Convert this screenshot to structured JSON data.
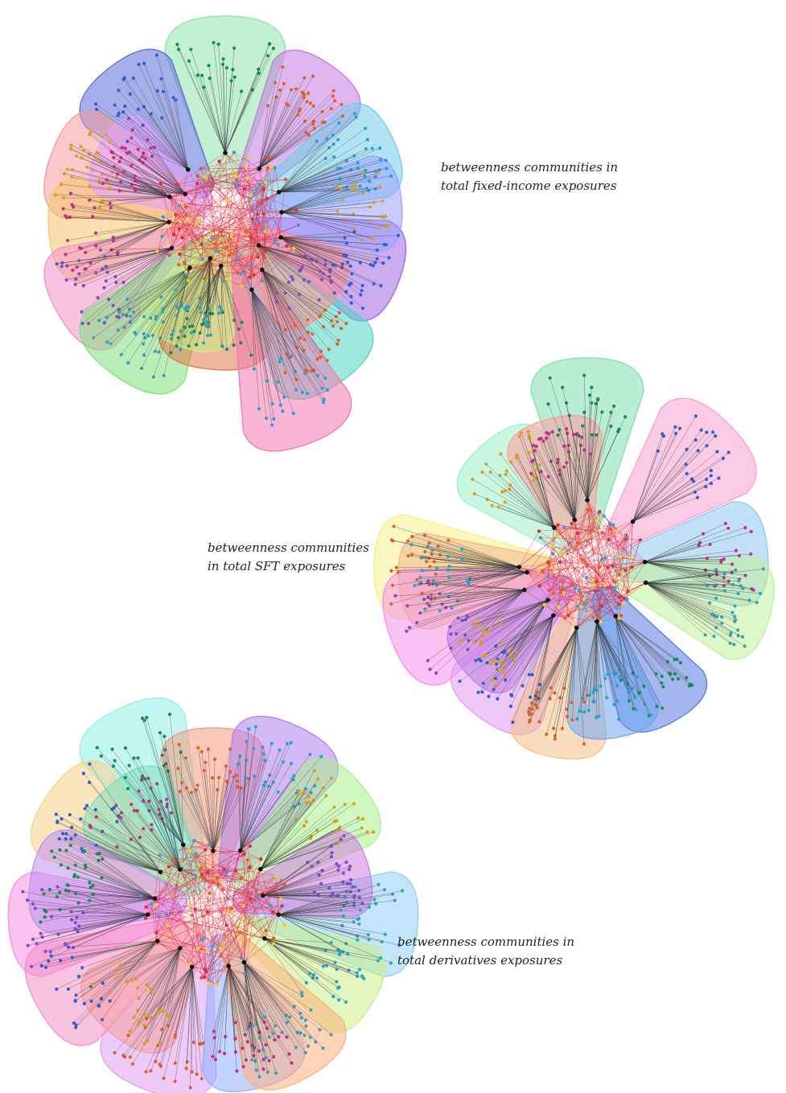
{
  "panels": [
    {
      "id": "fixed-income",
      "caption_lines": [
        "betweenness communities in",
        "total fixed-income exposures"
      ],
      "community_colors": [
        "#8fe3a9",
        "#5b6fd9",
        "#c27be0",
        "#6fcde8",
        "#f59a9a",
        "#f7c56b",
        "#f28fc8",
        "#7fe07f",
        "#e07a4a",
        "#a067e0",
        "#4fd6c4",
        "#f27ab0",
        "#9aa0ff",
        "#e6a0ff",
        "#ff8f8f",
        "#c8f08a"
      ],
      "node_colors": [
        "#1a8a5a",
        "#2f5fd0",
        "#e0602a",
        "#2a9fd0",
        "#d8a020",
        "#c0308a",
        "#7a50c0",
        "#3aa0b0"
      ]
    },
    {
      "id": "sft",
      "caption_lines": [
        "betweenness communities",
        "in total SFT exposures"
      ],
      "community_colors": [
        "#7fe0b0",
        "#f7a0d0",
        "#f6f08a",
        "#f2b98a",
        "#9ff0c8",
        "#8fc8f0",
        "#f590e8",
        "#bff09a",
        "#5a7ae0",
        "#e09af0",
        "#f6c08a",
        "#6fa8f0",
        "#c080e0",
        "#ff9a9a"
      ],
      "node_colors": [
        "#1a8a5a",
        "#2f5fd0",
        "#e0602a",
        "#2a9fd0",
        "#d8a020",
        "#c0308a",
        "#7a50c0",
        "#3aa0b0"
      ]
    },
    {
      "id": "derivatives",
      "caption_lines": [
        "betweenness communities in",
        "total derivatives exposures"
      ],
      "community_colors": [
        "#8ff0e8",
        "#f7d08a",
        "#f59a80",
        "#b080f0",
        "#a8f08a",
        "#7fe0c0",
        "#f590e0",
        "#8fd0f0",
        "#c090f0",
        "#f28fc8",
        "#e0a0f0",
        "#c8f08a",
        "#f2a0a0",
        "#90b0ff",
        "#d080e0",
        "#ffb07a"
      ],
      "node_colors": [
        "#1a8a5a",
        "#2f5fd0",
        "#e0602a",
        "#2a9fd0",
        "#d8a020",
        "#c0308a",
        "#7a50c0",
        "#3aa0b0"
      ]
    }
  ],
  "hub_color": "#111111",
  "core_edge_color": "#e02030",
  "spoke_color": "#333333"
}
